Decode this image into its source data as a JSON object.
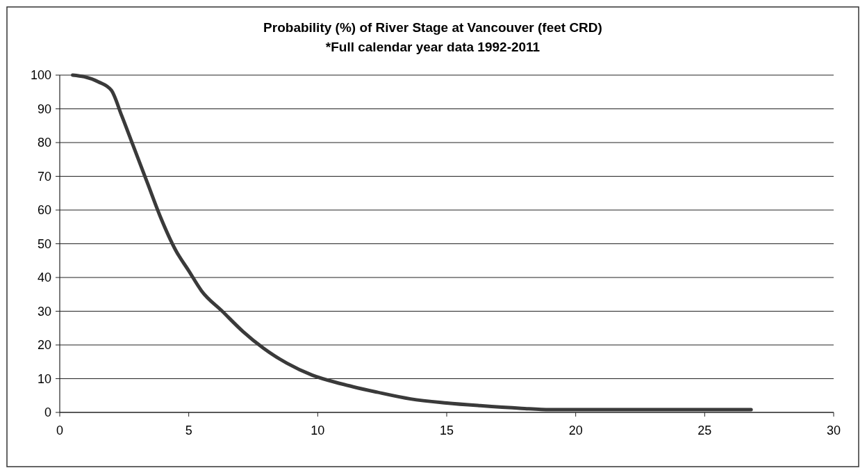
{
  "chart_data": {
    "type": "line",
    "title": "Probability (%) of River Stage at Vancouver (feet CRD)",
    "subtitle": "*Full calendar year data 1992-2011",
    "series": [
      {
        "color": "#3a3a3a",
        "x": [
          0.5,
          0.95,
          1.5,
          2.0,
          2.4,
          2.8,
          3.4,
          3.9,
          4.5,
          5.0,
          5.5,
          6.3,
          7.1,
          7.9,
          8.8,
          9.8,
          10.9,
          12.3,
          13.6,
          15,
          16.3,
          17.9,
          19,
          21,
          23,
          25,
          26.8
        ],
        "values": [
          100,
          99.5,
          98,
          95.5,
          88,
          80,
          68,
          58,
          48,
          42,
          36,
          30,
          24,
          19,
          14.6,
          11,
          8.5,
          6,
          4,
          2.8,
          2,
          1.2,
          0.8,
          0.8,
          0.8,
          0.8,
          0.8
        ]
      }
    ],
    "xlim": [
      0,
      30
    ],
    "xticks": [
      0,
      5,
      10,
      15,
      20,
      25,
      30
    ],
    "ylim": [
      0,
      100
    ],
    "yticks": [
      0,
      10,
      20,
      30,
      40,
      50,
      60,
      70,
      80,
      90,
      100
    ],
    "grid": "y",
    "marker": "none",
    "line_style": "solid"
  }
}
